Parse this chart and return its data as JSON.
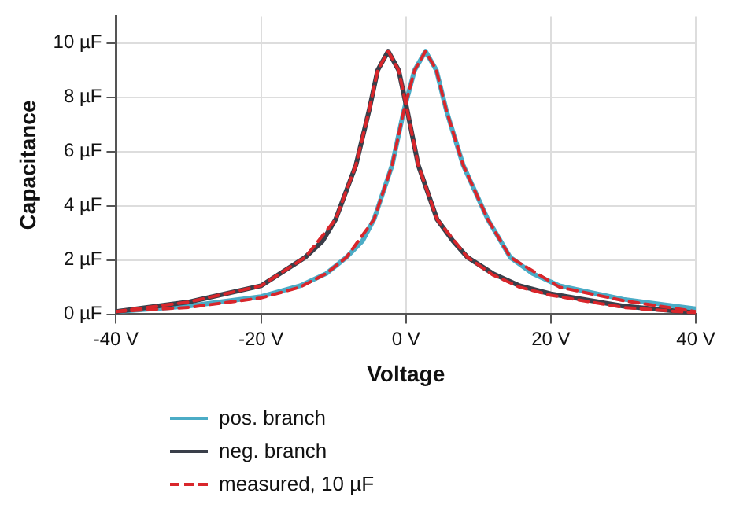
{
  "chart_data": {
    "type": "line",
    "xlabel": "Voltage",
    "ylabel": "Capacitance",
    "xlim": [
      -40,
      40
    ],
    "xticks": [
      {
        "value": -40,
        "label": "-40 V"
      },
      {
        "value": -20,
        "label": "-20 V"
      },
      {
        "value": 0,
        "label": "0 V"
      },
      {
        "value": 20,
        "label": "20 V"
      },
      {
        "value": 40,
        "label": "40 V"
      }
    ],
    "ylim": [
      0,
      11
    ],
    "yticks": [
      {
        "value": 0,
        "label": "0 µF"
      },
      {
        "value": 2,
        "label": "2 µF"
      },
      {
        "value": 4,
        "label": "4 µF"
      },
      {
        "value": 6,
        "label": "6 µF"
      },
      {
        "value": 8,
        "label": "8 µF"
      },
      {
        "value": 10,
        "label": "10 µF"
      }
    ],
    "grid": true,
    "legend": "bottom",
    "marker": "none",
    "series": [
      {
        "name": "pos. branch",
        "color": "#4bacc6",
        "line_style": "solid",
        "x": [
          -40,
          -30,
          -20,
          -14.6,
          -11,
          -8.2,
          -6,
          -4.4,
          -1.9,
          -0.3,
          1.2,
          2.7,
          4.2,
          5.6,
          7.9,
          11.3,
          14.4,
          17.5,
          21.2,
          30,
          40
        ],
        "values": [
          0.1,
          0.3,
          0.65,
          1.05,
          1.5,
          2.1,
          2.7,
          3.5,
          5.5,
          7.5,
          9.0,
          9.7,
          9.0,
          7.5,
          5.5,
          3.5,
          2.1,
          1.5,
          1.05,
          0.55,
          0.2
        ]
      },
      {
        "name": "neg. branch",
        "color": "#3a3f4a",
        "line_style": "solid",
        "x": [
          -40,
          -30,
          -20,
          -13.9,
          -11.5,
          -9.7,
          -6.9,
          -5.1,
          -3.9,
          -2.45,
          -1.0,
          0.2,
          1.7,
          4.3,
          6.5,
          8.5,
          12,
          15.7,
          20,
          30,
          40
        ],
        "values": [
          0.1,
          0.45,
          1.05,
          2.1,
          2.7,
          3.5,
          5.5,
          7.5,
          9.0,
          9.7,
          9.0,
          7.5,
          5.5,
          3.5,
          2.7,
          2.1,
          1.5,
          1.05,
          0.75,
          0.3,
          0.05
        ]
      },
      {
        "name": "measured, 10 µF",
        "color": "#d9262b",
        "line_style": "dashed",
        "x": [
          -40,
          -30,
          -20,
          -14.6,
          -11,
          -8.2,
          -4.4,
          -1.9,
          -0.3,
          1.2,
          2.7,
          4.2,
          5.6,
          7.9,
          11.3,
          14.4,
          21.2,
          30,
          40
        ],
        "values": [
          0.1,
          0.25,
          0.6,
          1.0,
          1.5,
          2.1,
          3.5,
          5.5,
          7.5,
          9.0,
          9.7,
          9.0,
          7.5,
          5.5,
          3.5,
          2.1,
          1.0,
          0.5,
          0.1
        ]
      },
      {
        "color": "#d9262b",
        "line_style": "dashed",
        "x": [
          -40,
          -30,
          -20,
          -13.9,
          -9.7,
          -6.9,
          -5.1,
          -3.9,
          -2.45,
          -1.0,
          0.2,
          1.7,
          4.3,
          8.5,
          12,
          15.7,
          20,
          30,
          40
        ],
        "values": [
          0.1,
          0.45,
          1.05,
          2.1,
          3.5,
          5.5,
          7.5,
          9.0,
          9.7,
          9.0,
          7.5,
          5.5,
          3.5,
          2.1,
          1.45,
          1.0,
          0.7,
          0.25,
          0.05
        ]
      }
    ]
  }
}
